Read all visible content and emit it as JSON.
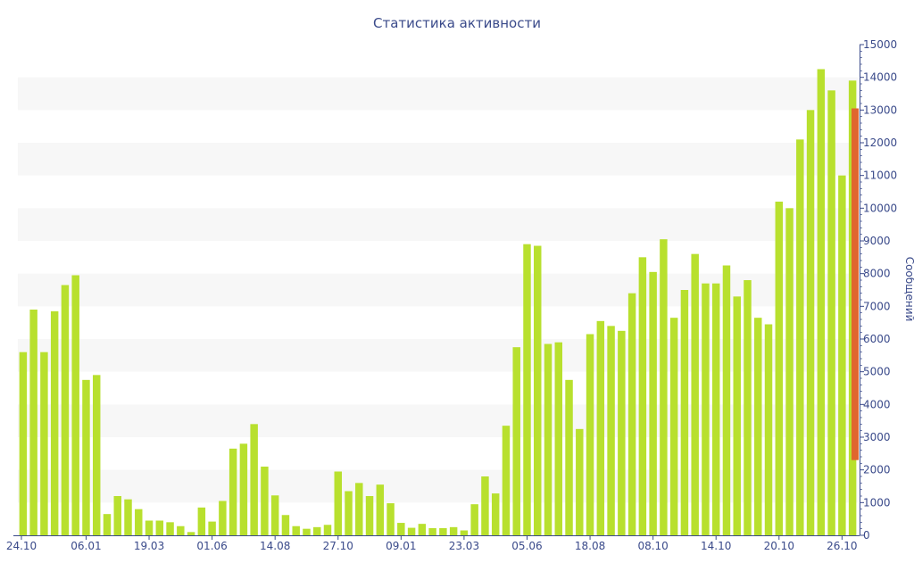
{
  "chart_data": {
    "type": "bar",
    "title": "Статистика активности",
    "xlabel": "",
    "ylabel": "Сообщений",
    "ylim": [
      0,
      15000
    ],
    "yticks": [
      0,
      1000,
      2000,
      3000,
      4000,
      5000,
      6000,
      7000,
      8000,
      9000,
      10000,
      11000,
      12000,
      13000,
      14000,
      15000
    ],
    "x_tick_labels": [
      "24.10",
      "06.01",
      "19.03",
      "01.06",
      "14.08",
      "27.10",
      "09.01",
      "23.03",
      "05.06",
      "18.08",
      "08.10",
      "14.10",
      "20.10",
      "26.10"
    ],
    "grid": "horizontal bands",
    "colors": {
      "bar": "#b8e02e",
      "highlight": "#e0662e",
      "band": "#f7f7f7",
      "text": "#3a4a8a"
    },
    "values": [
      5600,
      6900,
      5600,
      6850,
      7650,
      7950,
      4750,
      4900,
      650,
      1200,
      1100,
      800,
      450,
      450,
      400,
      280,
      100,
      850,
      420,
      1050,
      2650,
      2800,
      3400,
      2100,
      1220,
      620,
      280,
      200,
      250,
      320,
      1950,
      1350,
      1600,
      1200,
      1550,
      980,
      380,
      230,
      350,
      220,
      220,
      250,
      150,
      950,
      1800,
      1280,
      3350,
      5750,
      8900,
      8850,
      5850,
      5900,
      4750,
      3250,
      6150,
      6550,
      6400,
      6250,
      7400,
      8500,
      8050,
      9050,
      6650,
      7500,
      8600,
      7700,
      7700,
      8250,
      7300,
      7800,
      6650,
      6450,
      10200,
      10000,
      12100,
      13000,
      14250,
      13600,
      11000,
      13900
    ],
    "highlight": {
      "low": 2300,
      "high": 13050
    }
  }
}
